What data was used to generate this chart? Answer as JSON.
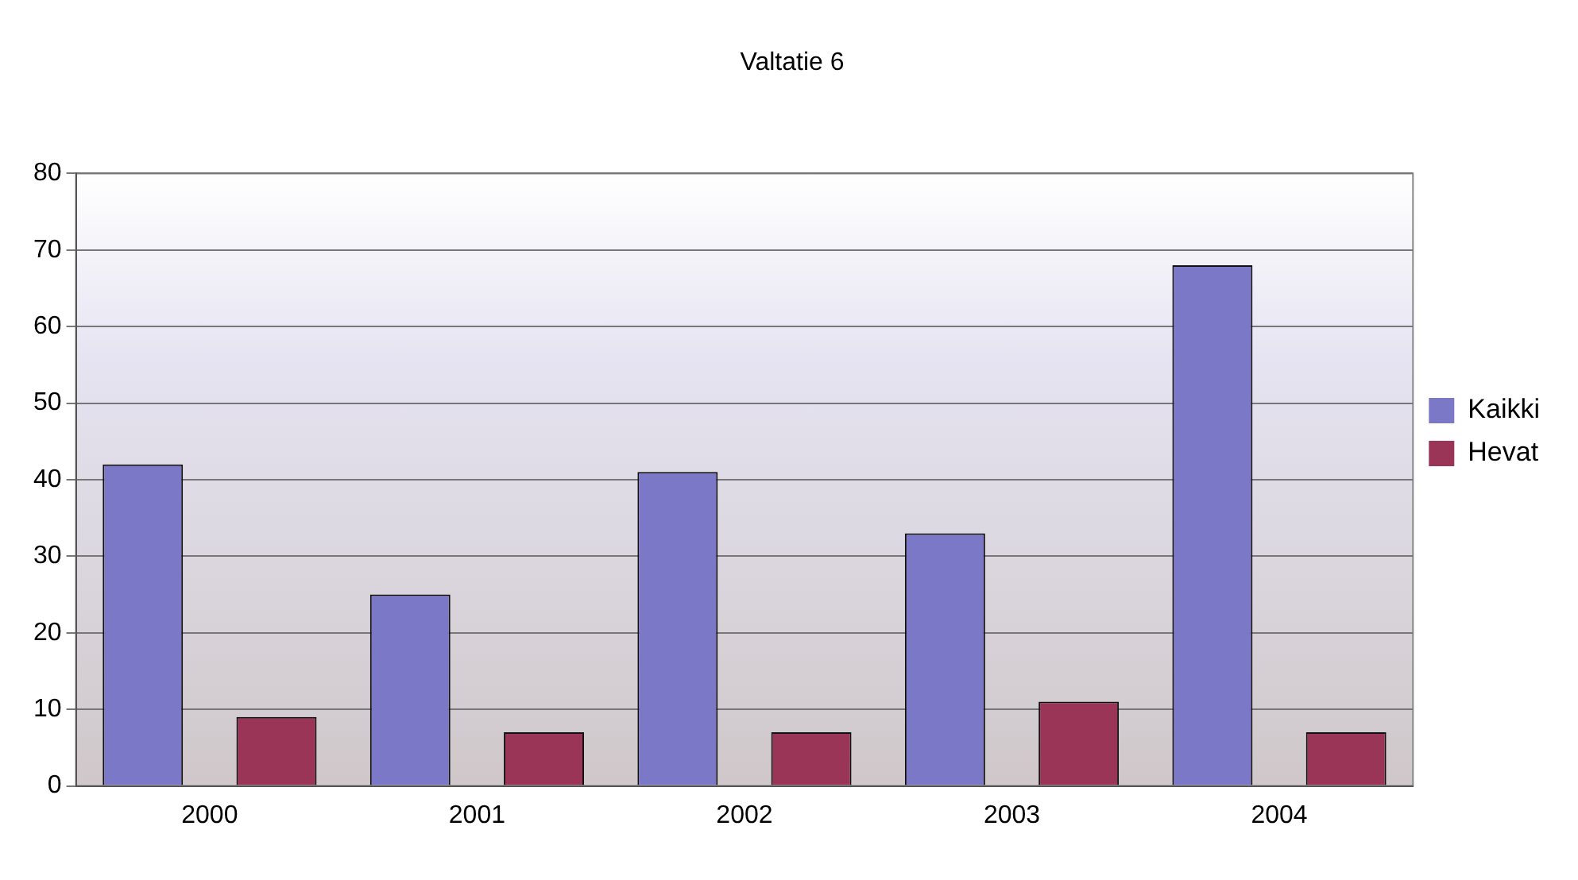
{
  "chart_data": {
    "type": "bar",
    "title": "Valtatie 6",
    "categories": [
      "2000",
      "2001",
      "2002",
      "2003",
      "2004"
    ],
    "series": [
      {
        "name": "Kaikki",
        "color": "#7b78c8",
        "values": [
          42,
          25,
          41,
          33,
          68
        ]
      },
      {
        "name": "Hevat",
        "color": "#9a3558",
        "values": [
          9,
          7,
          7,
          11,
          7
        ]
      }
    ],
    "ylim": [
      0,
      80
    ],
    "yticks": [
      0,
      10,
      20,
      30,
      40,
      50,
      60,
      70,
      80
    ],
    "grid": "y",
    "legend": "right"
  }
}
